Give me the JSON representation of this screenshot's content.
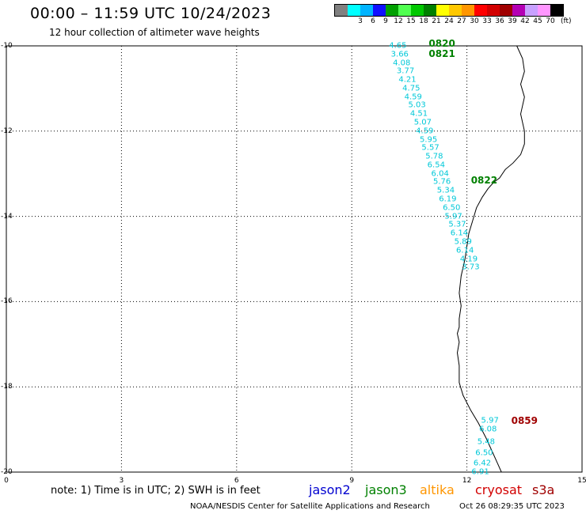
{
  "header": {
    "title": "00:00 – 11:59 UTC 10/24/2023",
    "subtitle": "12 hour collection of altimeter wave heights"
  },
  "legend": {
    "unit": "(ft)",
    "swatches": [
      {
        "color": "#808080",
        "label": ""
      },
      {
        "color": "#00ffff",
        "label": "3"
      },
      {
        "color": "#00b4ff",
        "label": "6"
      },
      {
        "color": "#1010ff",
        "label": "9"
      },
      {
        "color": "#00a000",
        "label": "12"
      },
      {
        "color": "#50ff50",
        "label": "15"
      },
      {
        "color": "#00c800",
        "label": "18"
      },
      {
        "color": "#008000",
        "label": "21"
      },
      {
        "color": "#ffff00",
        "label": "24"
      },
      {
        "color": "#ffc800",
        "label": "27"
      },
      {
        "color": "#ff9600",
        "label": "30"
      },
      {
        "color": "#ff0000",
        "label": "33"
      },
      {
        "color": "#d20000",
        "label": "36"
      },
      {
        "color": "#a00000",
        "label": "39"
      },
      {
        "color": "#b400b4",
        "label": "42"
      },
      {
        "color": "#c8a0ff",
        "label": "45"
      },
      {
        "color": "#ff96ff",
        "label": "70"
      },
      {
        "color": "#000000",
        "label": ""
      }
    ]
  },
  "axes": {
    "x_ticks": [
      "0",
      "3",
      "6",
      "9",
      "12",
      "15"
    ],
    "x_values": [
      0,
      3,
      6,
      9,
      12,
      15
    ],
    "y_ticks": [
      "-10",
      "-12",
      "-14",
      "-16",
      "-18",
      "-20"
    ],
    "y_values": [
      -10,
      -12,
      -14,
      -16,
      -18,
      -20
    ],
    "xlim": [
      0,
      15
    ],
    "ylim": [
      -20,
      -10
    ]
  },
  "observations": [
    {
      "lon": 10.2,
      "lat": -10.0,
      "value": "4.65"
    },
    {
      "lon": 10.25,
      "lat": -10.2,
      "value": "3.66"
    },
    {
      "lon": 10.3,
      "lat": -10.4,
      "value": "4.08"
    },
    {
      "lon": 10.4,
      "lat": -10.6,
      "value": "3.77"
    },
    {
      "lon": 10.45,
      "lat": -10.8,
      "value": "4.21"
    },
    {
      "lon": 10.55,
      "lat": -11.0,
      "value": "4.75"
    },
    {
      "lon": 10.6,
      "lat": -11.2,
      "value": "4.59"
    },
    {
      "lon": 10.7,
      "lat": -11.4,
      "value": "5.03"
    },
    {
      "lon": 10.75,
      "lat": -11.6,
      "value": "4.51"
    },
    {
      "lon": 10.85,
      "lat": -11.8,
      "value": "5.07"
    },
    {
      "lon": 10.9,
      "lat": -12.0,
      "value": "4.59"
    },
    {
      "lon": 11.0,
      "lat": -12.2,
      "value": "5.95"
    },
    {
      "lon": 11.05,
      "lat": -12.4,
      "value": "5.57"
    },
    {
      "lon": 11.15,
      "lat": -12.6,
      "value": "5.78"
    },
    {
      "lon": 11.2,
      "lat": -12.8,
      "value": "6.54"
    },
    {
      "lon": 11.3,
      "lat": -13.0,
      "value": "6.04"
    },
    {
      "lon": 11.35,
      "lat": -13.2,
      "value": "5.76"
    },
    {
      "lon": 11.45,
      "lat": -13.4,
      "value": "5.34"
    },
    {
      "lon": 11.5,
      "lat": -13.6,
      "value": "6.19"
    },
    {
      "lon": 11.6,
      "lat": -13.8,
      "value": "6.50"
    },
    {
      "lon": 11.65,
      "lat": -14.0,
      "value": "5.97"
    },
    {
      "lon": 11.75,
      "lat": -14.2,
      "value": "5.37"
    },
    {
      "lon": 11.8,
      "lat": -14.4,
      "value": "6.14"
    },
    {
      "lon": 11.9,
      "lat": -14.6,
      "value": "5.89"
    },
    {
      "lon": 11.95,
      "lat": -14.8,
      "value": "6.14"
    },
    {
      "lon": 12.05,
      "lat": -15.0,
      "value": "4.19"
    },
    {
      "lon": 12.1,
      "lat": -15.2,
      "value": "3.73"
    },
    {
      "lon": 12.6,
      "lat": -18.8,
      "value": "5.97"
    },
    {
      "lon": 12.55,
      "lat": -19.0,
      "value": "6.08"
    },
    {
      "lon": 12.5,
      "lat": -19.3,
      "value": "5.48"
    },
    {
      "lon": 12.45,
      "lat": -19.55,
      "value": "6.50"
    },
    {
      "lon": 12.4,
      "lat": -19.8,
      "value": "6.42"
    },
    {
      "lon": 12.35,
      "lat": -20.0,
      "value": "6.91"
    }
  ],
  "pass_times": [
    {
      "lon": 11.35,
      "lat": -9.95,
      "label": "0820",
      "color": "#008000"
    },
    {
      "lon": 11.35,
      "lat": -10.18,
      "label": "0821",
      "color": "#008000"
    },
    {
      "lon": 12.45,
      "lat": -13.15,
      "label": "0822",
      "color": "#008000"
    },
    {
      "lon": 13.5,
      "lat": -18.8,
      "label": "0859",
      "color": "#a00000"
    }
  ],
  "coastline": [
    [
      13.3,
      -10.0
    ],
    [
      13.45,
      -10.3
    ],
    [
      13.5,
      -10.6
    ],
    [
      13.4,
      -10.9
    ],
    [
      13.5,
      -11.2
    ],
    [
      13.4,
      -11.6
    ],
    [
      13.5,
      -12.0
    ],
    [
      13.5,
      -12.3
    ],
    [
      13.4,
      -12.55
    ],
    [
      13.2,
      -12.75
    ],
    [
      13.0,
      -12.9
    ],
    [
      12.85,
      -13.1
    ],
    [
      12.7,
      -13.2
    ],
    [
      12.55,
      -13.35
    ],
    [
      12.4,
      -13.55
    ],
    [
      12.25,
      -13.8
    ],
    [
      12.15,
      -14.1
    ],
    [
      12.05,
      -14.4
    ],
    [
      12.0,
      -14.7
    ],
    [
      11.95,
      -15.0
    ],
    [
      11.85,
      -15.4
    ],
    [
      11.8,
      -15.8
    ],
    [
      11.85,
      -16.1
    ],
    [
      11.8,
      -16.4
    ],
    [
      11.8,
      -16.6
    ],
    [
      11.75,
      -16.75
    ],
    [
      11.8,
      -16.95
    ],
    [
      11.75,
      -17.2
    ],
    [
      11.8,
      -17.5
    ],
    [
      11.8,
      -17.9
    ],
    [
      11.9,
      -18.2
    ],
    [
      12.1,
      -18.55
    ],
    [
      12.3,
      -18.85
    ],
    [
      12.5,
      -19.2
    ],
    [
      12.65,
      -19.5
    ],
    [
      12.8,
      -19.8
    ],
    [
      12.9,
      -20.0
    ]
  ],
  "footer": {
    "note": "note: 1) Time is in UTC; 2) SWH is in feet",
    "satellites": [
      {
        "name": "jason2",
        "color": "#0000d0"
      },
      {
        "name": "jason3",
        "color": "#008000"
      },
      {
        "name": "altika",
        "color": "#ff9600"
      },
      {
        "name": "cryosat",
        "color": "#d20000"
      },
      {
        "name": "s3a",
        "color": "#a00000"
      }
    ],
    "credit": "NOAA/NESDIS Center for Satellite Applications and Research",
    "timestamp": "Oct 26 08:29:35 UTC 2023"
  }
}
